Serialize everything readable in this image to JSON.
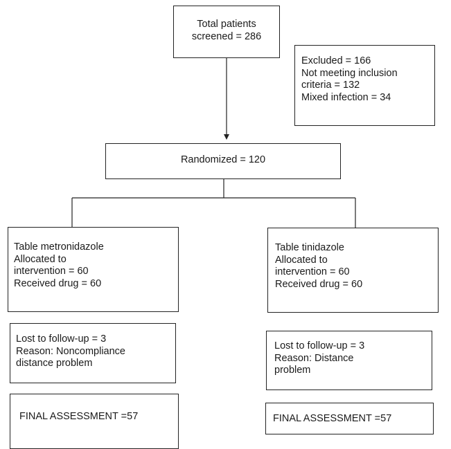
{
  "flowchart": {
    "screened": {
      "lines": [
        "Total patients",
        "screened = 286"
      ]
    },
    "excluded": {
      "lines": [
        "Excluded = 166",
        "Not meeting inclusion",
        "criteria = 132",
        "Mixed infection = 34"
      ]
    },
    "randomized": {
      "lines": [
        "Randomized = 120"
      ]
    },
    "left_arm": {
      "allocation": {
        "lines": [
          "Table metronidazole",
          "Allocated to",
          "intervention = 60",
          "Received drug = 60"
        ]
      },
      "followup": {
        "lines": [
          "Lost to follow-up = 3",
          "Reason: Noncompliance",
          "distance problem"
        ]
      },
      "final": {
        "lines": [
          "FINAL ASSESSMENT =57"
        ]
      }
    },
    "right_arm": {
      "allocation": {
        "lines": [
          "Table tinidazole",
          "Allocated to",
          "intervention = 60",
          "Received drug = 60"
        ]
      },
      "followup": {
        "lines": [
          "Lost to follow-up = 3",
          "Reason: Distance",
          "problem"
        ]
      },
      "final": {
        "lines": [
          "FINAL ASSESSMENT =57"
        ]
      }
    }
  }
}
